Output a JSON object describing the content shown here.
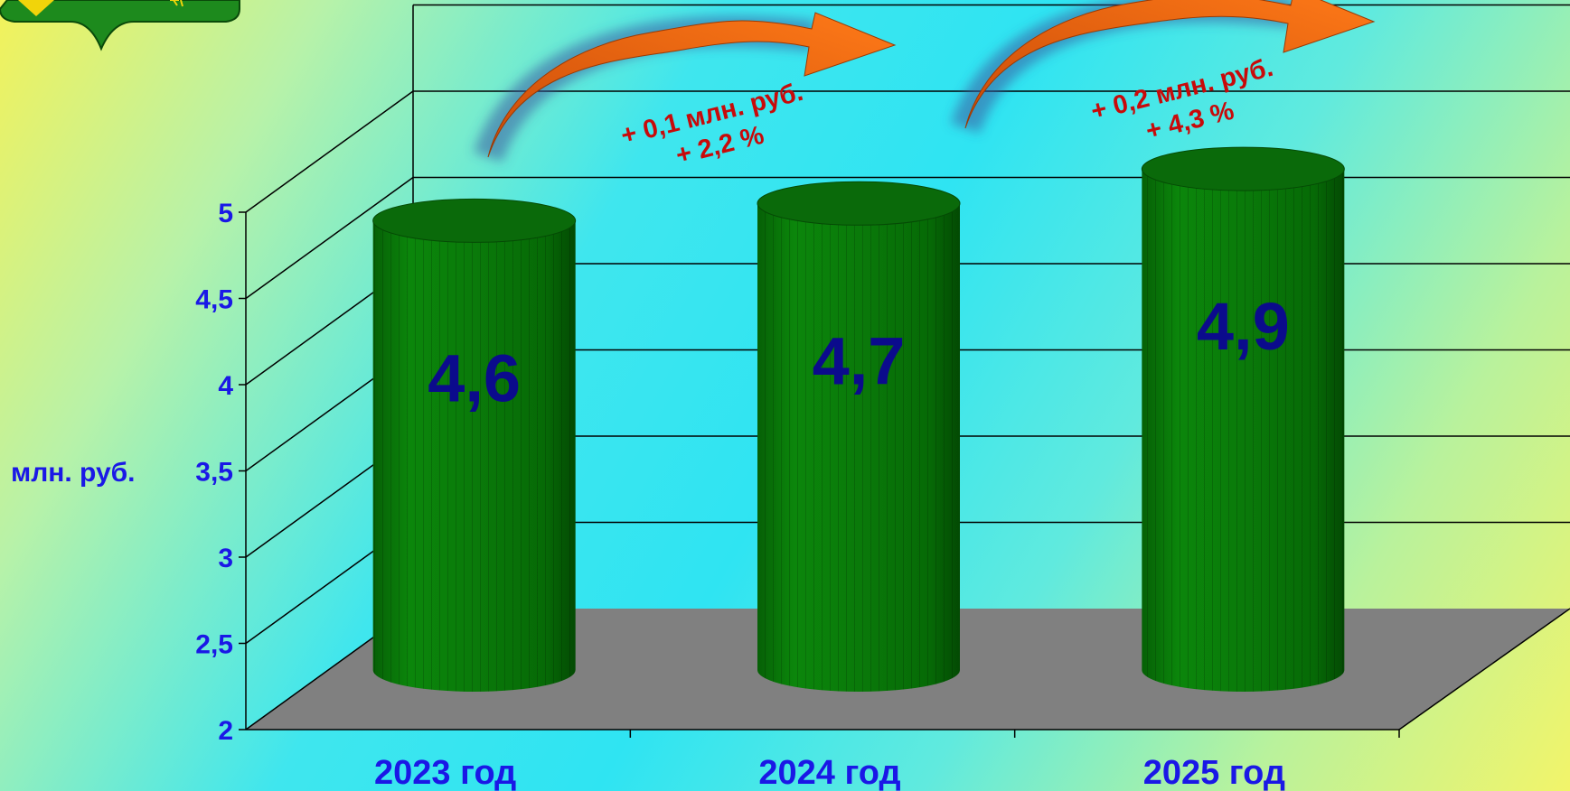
{
  "colors": {
    "bar": "#0a7a0a",
    "bar_dark": "#075c07",
    "bar_top": "#0a6a0a",
    "floor": "#808080",
    "axis_text": "#1a18e6",
    "value_text": "#0b0b8c",
    "annotation_text": "#c80a0a",
    "arrow": "#e3560b"
  },
  "logo": {
    "icon": "emblem-shield-icon"
  },
  "chart_data": {
    "type": "bar",
    "style": "3d-cylinder",
    "categories": [
      "2023 год",
      "2024 год",
      "2025 год"
    ],
    "values": [
      4.6,
      4.7,
      4.9
    ],
    "value_labels": [
      "4,6",
      "4,7",
      "4,9"
    ],
    "ylabel": "млн. руб.",
    "ylim": [
      2,
      5
    ],
    "yticks": [
      2,
      2.5,
      3,
      3.5,
      4,
      4.5,
      5
    ],
    "ytick_labels": [
      "2",
      "2,5",
      "3",
      "3,5",
      "4",
      "4,5",
      "5"
    ],
    "grid": true,
    "annotations": [
      {
        "from": "2023 год",
        "to": "2024 год",
        "lines": [
          "+ 0,1 млн. руб.",
          "+ 2,2 %"
        ],
        "icon": "curved-arrow-icon"
      },
      {
        "from": "2024 год",
        "to": "2025 год",
        "lines": [
          "+ 0,2 млн. руб.",
          "+ 4,3 %"
        ],
        "icon": "curved-arrow-icon"
      }
    ]
  }
}
